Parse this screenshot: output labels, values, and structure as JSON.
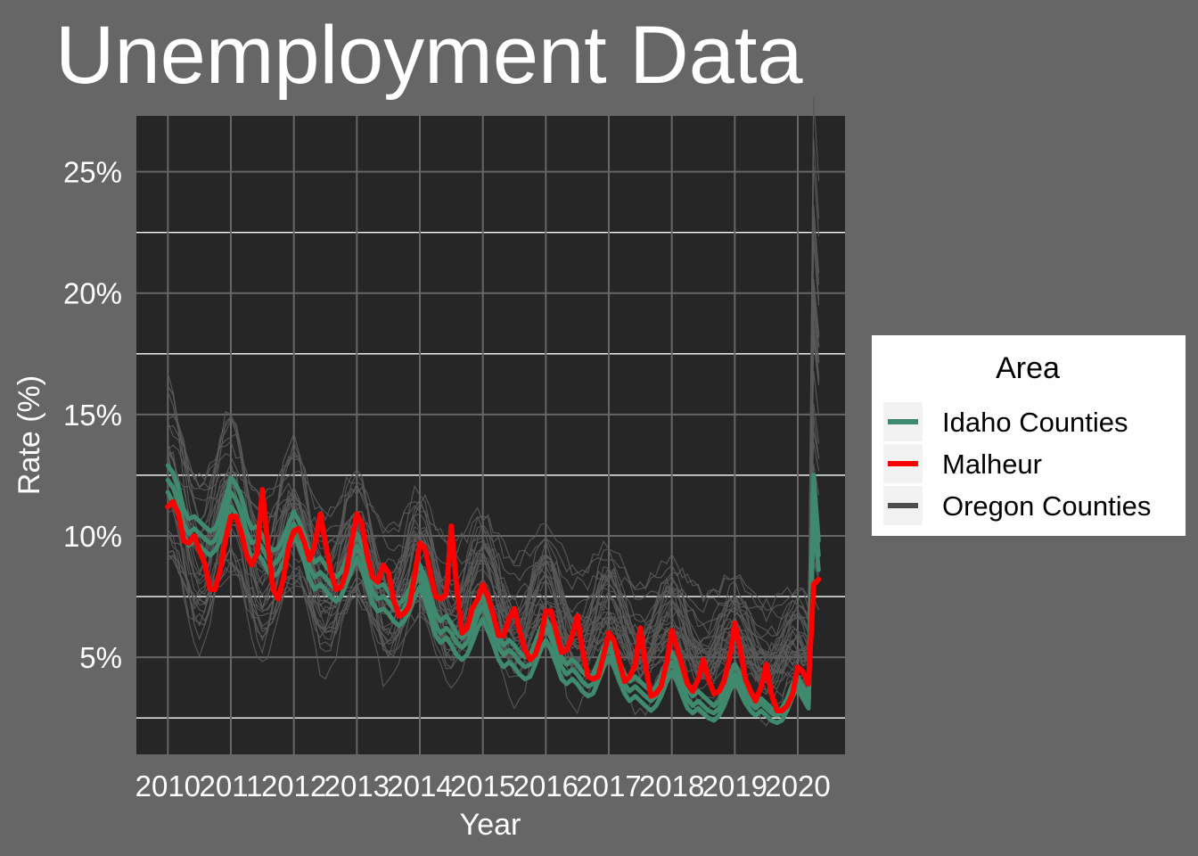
{
  "chart_data": {
    "type": "line",
    "title": "Unemployment Data",
    "xlabel": "Year",
    "ylabel": "Rate (%)",
    "xlim": [
      2009.5,
      2020.75
    ],
    "ylim": [
      1.0,
      27.3
    ],
    "x_ticks": [
      2010,
      2011,
      2012,
      2013,
      2014,
      2015,
      2016,
      2017,
      2018,
      2019,
      2020
    ],
    "x_tick_labels": [
      "2010",
      "2011",
      "2012",
      "2013",
      "2014",
      "2015",
      "2016",
      "2017",
      "2018",
      "2019",
      "2020"
    ],
    "y_ticks": [
      5,
      10,
      15,
      20,
      25
    ],
    "y_tick_labels": [
      "5%",
      "10%",
      "15%",
      "20%",
      "25%"
    ],
    "y_minor": [
      2.5,
      7.5,
      12.5,
      17.5,
      22.5
    ],
    "grid": true,
    "legend": {
      "title": "Area",
      "placement": "right",
      "entries": [
        {
          "label": "Idaho Counties",
          "color": "#3f8a6e"
        },
        {
          "label": "Malheur",
          "color": "#ff0000"
        },
        {
          "label": "Oregon Counties",
          "color": "#4d4d4d"
        }
      ]
    },
    "colors": {
      "page_background": "#666666",
      "panel_background": "#262626",
      "grid_major": "#666666",
      "grid_minor": "#ffffff",
      "idaho": "#3f8a6e",
      "malheur": "#ff0000",
      "oregon": "#5a5a5a"
    },
    "series": [
      {
        "name": "Malheur",
        "group": "Malheur",
        "x": [
          2010.0,
          2010.08,
          2010.17,
          2010.25,
          2010.33,
          2010.42,
          2010.5,
          2010.58,
          2010.67,
          2010.75,
          2010.83,
          2010.92,
          2011.0,
          2011.08,
          2011.17,
          2011.25,
          2011.33,
          2011.42,
          2011.5,
          2011.58,
          2011.67,
          2011.75,
          2011.83,
          2011.92,
          2012.0,
          2012.08,
          2012.17,
          2012.25,
          2012.33,
          2012.42,
          2012.5,
          2012.58,
          2012.67,
          2012.75,
          2012.83,
          2012.92,
          2013.0,
          2013.08,
          2013.17,
          2013.25,
          2013.33,
          2013.42,
          2013.5,
          2013.58,
          2013.67,
          2013.75,
          2013.83,
          2013.92,
          2014.0,
          2014.08,
          2014.17,
          2014.25,
          2014.33,
          2014.42,
          2014.5,
          2014.58,
          2014.67,
          2014.75,
          2014.83,
          2014.92,
          2015.0,
          2015.08,
          2015.17,
          2015.25,
          2015.33,
          2015.42,
          2015.5,
          2015.58,
          2015.67,
          2015.75,
          2015.83,
          2015.92,
          2016.0,
          2016.08,
          2016.17,
          2016.25,
          2016.33,
          2016.42,
          2016.5,
          2016.58,
          2016.67,
          2016.75,
          2016.83,
          2016.92,
          2017.0,
          2017.08,
          2017.17,
          2017.25,
          2017.33,
          2017.42,
          2017.5,
          2017.58,
          2017.67,
          2017.75,
          2017.83,
          2017.92,
          2018.0,
          2018.08,
          2018.17,
          2018.25,
          2018.33,
          2018.42,
          2018.5,
          2018.58,
          2018.67,
          2018.75,
          2018.83,
          2018.92,
          2019.0,
          2019.08,
          2019.17,
          2019.25,
          2019.33,
          2019.42,
          2019.5,
          2019.58,
          2019.67,
          2019.75,
          2019.83,
          2019.92,
          2020.0,
          2020.08,
          2020.17,
          2020.25,
          2020.33
        ],
        "y": [
          11.2,
          11.4,
          10.9,
          9.8,
          9.7,
          10.0,
          9.4,
          8.9,
          7.8,
          7.8,
          8.6,
          9.9,
          10.8,
          10.8,
          10.1,
          9.2,
          8.8,
          9.3,
          11.9,
          9.8,
          7.8,
          7.4,
          8.2,
          9.6,
          10.2,
          10.3,
          9.7,
          9.0,
          9.6,
          10.9,
          9.7,
          8.6,
          7.8,
          7.9,
          8.5,
          9.8,
          10.9,
          10.5,
          9.1,
          8.3,
          8.1,
          8.8,
          8.5,
          7.4,
          6.7,
          6.8,
          7.1,
          8.4,
          9.7,
          9.5,
          8.4,
          7.5,
          7.4,
          7.6,
          10.4,
          8.0,
          6.0,
          6.2,
          7.0,
          7.4,
          8.0,
          7.5,
          6.7,
          5.9,
          5.9,
          6.6,
          7.0,
          6.1,
          5.3,
          4.9,
          5.1,
          5.8,
          6.9,
          6.9,
          6.0,
          5.2,
          5.3,
          5.9,
          6.7,
          5.3,
          4.2,
          4.1,
          4.2,
          5.1,
          6.0,
          5.7,
          4.8,
          4.0,
          4.2,
          4.7,
          6.2,
          4.7,
          3.4,
          3.5,
          3.8,
          4.8,
          6.1,
          5.4,
          4.6,
          3.9,
          3.6,
          4.1,
          4.9,
          4.1,
          3.5,
          3.6,
          4.0,
          5.0,
          6.4,
          5.4,
          4.1,
          3.6,
          3.2,
          3.8,
          4.7,
          3.5,
          2.8,
          2.8,
          3.0,
          3.5,
          4.6,
          4.4,
          3.9,
          8.0,
          8.2
        ]
      },
      {
        "name": "Idaho Counties",
        "group": "Idaho Counties",
        "x": [
          2010.0,
          2010.08,
          2010.17,
          2010.25,
          2010.33,
          2010.42,
          2010.5,
          2010.58,
          2010.67,
          2010.75,
          2010.83,
          2010.92,
          2011.0,
          2011.08,
          2011.17,
          2011.25,
          2011.33,
          2011.42,
          2011.5,
          2011.58,
          2011.67,
          2011.75,
          2011.83,
          2011.92,
          2012.0,
          2012.08,
          2012.17,
          2012.25,
          2012.33,
          2012.42,
          2012.5,
          2012.58,
          2012.67,
          2012.75,
          2012.83,
          2012.92,
          2013.0,
          2013.08,
          2013.17,
          2013.25,
          2013.33,
          2013.42,
          2013.5,
          2013.58,
          2013.67,
          2013.75,
          2013.83,
          2013.92,
          2014.0,
          2014.08,
          2014.17,
          2014.25,
          2014.33,
          2014.42,
          2014.5,
          2014.58,
          2014.67,
          2014.75,
          2014.83,
          2014.92,
          2015.0,
          2015.08,
          2015.17,
          2015.25,
          2015.33,
          2015.42,
          2015.5,
          2015.58,
          2015.67,
          2015.75,
          2015.83,
          2015.92,
          2016.0,
          2016.08,
          2016.17,
          2016.25,
          2016.33,
          2016.42,
          2016.5,
          2016.58,
          2016.67,
          2016.75,
          2016.83,
          2016.92,
          2017.0,
          2017.08,
          2017.17,
          2017.25,
          2017.33,
          2017.42,
          2017.5,
          2017.58,
          2017.67,
          2017.75,
          2017.83,
          2017.92,
          2018.0,
          2018.08,
          2018.17,
          2018.25,
          2018.33,
          2018.42,
          2018.5,
          2018.58,
          2018.67,
          2018.75,
          2018.83,
          2018.92,
          2019.0,
          2019.08,
          2019.17,
          2019.25,
          2019.33,
          2019.42,
          2019.5,
          2019.58,
          2019.67,
          2019.75,
          2019.83,
          2019.92,
          2020.0,
          2020.08,
          2020.17,
          2020.25,
          2020.33
        ],
        "y": [
          12.9,
          12.6,
          12.0,
          11.1,
          10.7,
          10.8,
          10.6,
          10.4,
          10.2,
          10.3,
          10.8,
          11.6,
          12.4,
          12.1,
          11.6,
          10.8,
          10.3,
          10.4,
          10.0,
          9.6,
          9.4,
          9.5,
          9.9,
          10.5,
          11.0,
          10.6,
          10.0,
          9.3,
          8.9,
          9.1,
          8.8,
          8.5,
          8.3,
          8.5,
          9.0,
          9.6,
          10.1,
          9.6,
          8.9,
          8.2,
          7.9,
          8.0,
          7.7,
          7.4,
          7.2,
          7.4,
          7.8,
          8.4,
          8.8,
          8.3,
          7.5,
          6.8,
          6.5,
          6.7,
          6.4,
          6.0,
          5.8,
          6.0,
          6.5,
          7.1,
          7.5,
          7.0,
          6.4,
          5.8,
          5.5,
          5.7,
          5.5,
          5.2,
          5.0,
          5.1,
          5.6,
          6.2,
          6.6,
          6.2,
          5.6,
          5.0,
          4.7,
          4.9,
          4.7,
          4.4,
          4.2,
          4.3,
          4.8,
          5.4,
          5.8,
          5.4,
          4.8,
          4.3,
          4.0,
          4.2,
          4.0,
          3.8,
          3.6,
          3.8,
          4.2,
          4.8,
          5.2,
          4.8,
          4.2,
          3.7,
          3.4,
          3.6,
          3.4,
          3.2,
          3.0,
          3.2,
          3.7,
          4.3,
          4.7,
          4.3,
          3.8,
          3.4,
          3.1,
          3.3,
          3.1,
          2.9,
          2.8,
          2.9,
          3.3,
          3.9,
          4.2,
          3.8,
          3.2,
          12.5,
          9.8
        ]
      },
      {
        "name": "Idaho Counties",
        "group": "Idaho Counties",
        "x": [
          2010.0,
          2010.08,
          2010.17,
          2010.25,
          2010.33,
          2010.42,
          2010.5,
          2010.58,
          2010.67,
          2010.75,
          2010.83,
          2010.92,
          2011.0,
          2011.08,
          2011.17,
          2011.25,
          2011.33,
          2011.42,
          2011.5,
          2011.58,
          2011.67,
          2011.75,
          2011.83,
          2011.92,
          2012.0,
          2012.08,
          2012.17,
          2012.25,
          2012.33,
          2012.42,
          2012.5,
          2012.58,
          2012.67,
          2012.75,
          2012.83,
          2012.92,
          2013.0,
          2013.08,
          2013.17,
          2013.25,
          2013.33,
          2013.42,
          2013.5,
          2013.58,
          2013.67,
          2013.75,
          2013.83,
          2013.92,
          2014.0,
          2014.08,
          2014.17,
          2014.25,
          2014.33,
          2014.42,
          2014.5,
          2014.58,
          2014.67,
          2014.75,
          2014.83,
          2014.92,
          2015.0,
          2015.08,
          2015.17,
          2015.25,
          2015.33,
          2015.42,
          2015.5,
          2015.58,
          2015.67,
          2015.75,
          2015.83,
          2015.92,
          2016.0,
          2016.08,
          2016.17,
          2016.25,
          2016.33,
          2016.42,
          2016.5,
          2016.58,
          2016.67,
          2016.75,
          2016.83,
          2016.92,
          2017.0,
          2017.08,
          2017.17,
          2017.25,
          2017.33,
          2017.42,
          2017.5,
          2017.58,
          2017.67,
          2017.75,
          2017.83,
          2017.92,
          2018.0,
          2018.08,
          2018.17,
          2018.25,
          2018.33,
          2018.42,
          2018.5,
          2018.58,
          2018.67,
          2018.75,
          2018.83,
          2018.92,
          2019.0,
          2019.08,
          2019.17,
          2019.25,
          2019.33,
          2019.42,
          2019.5,
          2019.58,
          2019.67,
          2019.75,
          2019.83,
          2019.92,
          2020.0,
          2020.08,
          2020.17,
          2020.25,
          2020.33
        ],
        "y": [
          11.8,
          11.4,
          10.8,
          10.0,
          9.6,
          9.8,
          9.6,
          9.4,
          9.2,
          9.4,
          9.8,
          10.6,
          11.2,
          10.9,
          10.3,
          9.6,
          9.1,
          9.3,
          9.0,
          8.6,
          8.3,
          8.5,
          8.9,
          9.5,
          10.0,
          9.6,
          8.9,
          8.2,
          7.8,
          8.0,
          7.8,
          7.5,
          7.3,
          7.5,
          8.0,
          8.6,
          9.1,
          8.6,
          7.9,
          7.2,
          6.9,
          7.0,
          6.8,
          6.5,
          6.3,
          6.5,
          6.9,
          7.5,
          7.9,
          7.4,
          6.6,
          5.9,
          5.6,
          5.8,
          5.5,
          5.1,
          4.9,
          5.1,
          5.6,
          6.2,
          6.6,
          6.1,
          5.5,
          4.9,
          4.6,
          4.8,
          4.6,
          4.3,
          4.1,
          4.2,
          4.7,
          5.3,
          5.7,
          5.3,
          4.7,
          4.1,
          3.9,
          4.1,
          3.9,
          3.6,
          3.4,
          3.5,
          4.0,
          4.6,
          5.0,
          4.6,
          4.0,
          3.5,
          3.2,
          3.4,
          3.2,
          3.0,
          2.8,
          3.0,
          3.4,
          4.0,
          4.4,
          4.0,
          3.4,
          2.9,
          2.7,
          2.9,
          2.7,
          2.5,
          2.4,
          2.6,
          3.0,
          3.6,
          4.0,
          3.6,
          3.1,
          2.8,
          2.6,
          2.8,
          2.6,
          2.4,
          2.3,
          2.4,
          2.8,
          3.4,
          3.7,
          3.3,
          2.9,
          10.8,
          8.6
        ]
      },
      {
        "name": "Idaho Counties",
        "group": "Idaho Counties",
        "x": [
          2010.0,
          2010.08,
          2010.17,
          2010.25,
          2010.33,
          2010.42,
          2010.5,
          2010.58,
          2010.67,
          2010.75,
          2010.83,
          2010.92,
          2011.0,
          2011.08,
          2011.17,
          2011.25,
          2011.33,
          2011.42,
          2011.5,
          2011.58,
          2011.67,
          2011.75,
          2011.83,
          2011.92,
          2012.0,
          2012.08,
          2012.17,
          2012.25,
          2012.33,
          2012.42,
          2012.5,
          2012.58,
          2012.67,
          2012.75,
          2012.83,
          2012.92,
          2013.0,
          2013.08,
          2013.17,
          2013.25,
          2013.33,
          2013.42,
          2013.5,
          2013.58,
          2013.67,
          2013.75,
          2013.83,
          2013.92,
          2014.0,
          2014.08,
          2014.17,
          2014.25,
          2014.33,
          2014.42,
          2014.5,
          2014.58,
          2014.67,
          2014.75,
          2014.83,
          2014.92,
          2015.0,
          2015.08,
          2015.17,
          2015.25,
          2015.33,
          2015.42,
          2015.5,
          2015.58,
          2015.67,
          2015.75,
          2015.83,
          2015.92,
          2016.0,
          2016.08,
          2016.17,
          2016.25,
          2016.33,
          2016.42,
          2016.5,
          2016.58,
          2016.67,
          2016.75,
          2016.83,
          2016.92,
          2017.0,
          2017.08,
          2017.17,
          2017.25,
          2017.33,
          2017.42,
          2017.5,
          2017.58,
          2017.67,
          2017.75,
          2017.83,
          2017.92,
          2018.0,
          2018.08,
          2018.17,
          2018.25,
          2018.33,
          2018.42,
          2018.5,
          2018.58,
          2018.67,
          2018.75,
          2018.83,
          2018.92,
          2019.0,
          2019.08,
          2019.17,
          2019.25,
          2019.33,
          2019.42,
          2019.5,
          2019.58,
          2019.67,
          2019.75,
          2019.83,
          2019.92,
          2020.0,
          2020.08,
          2020.17,
          2020.25,
          2020.33
        ],
        "y": [
          12.3,
          12.0,
          11.4,
          10.5,
          10.1,
          10.3,
          10.1,
          9.9,
          9.7,
          9.8,
          10.3,
          11.1,
          11.8,
          11.5,
          10.9,
          10.2,
          9.7,
          9.8,
          9.5,
          9.1,
          8.8,
          9.0,
          9.4,
          10.0,
          10.5,
          10.1,
          9.4,
          8.7,
          8.3,
          8.5,
          8.3,
          8.0,
          7.8,
          8.0,
          8.5,
          9.1,
          9.6,
          9.1,
          8.4,
          7.7,
          7.4,
          7.5,
          7.3,
          7.0,
          6.8,
          7.0,
          7.4,
          8.0,
          8.4,
          7.8,
          7.0,
          6.3,
          6.0,
          6.2,
          6.0,
          5.6,
          5.4,
          5.6,
          6.1,
          6.7,
          7.1,
          6.6,
          6.0,
          5.4,
          5.1,
          5.3,
          5.1,
          4.8,
          4.6,
          4.7,
          5.2,
          5.8,
          6.2,
          5.8,
          5.2,
          4.6,
          4.3,
          4.5,
          4.3,
          4.0,
          3.8,
          3.9,
          4.4,
          5.0,
          5.4,
          5.0,
          4.4,
          3.9,
          3.6,
          3.8,
          3.6,
          3.4,
          3.2,
          3.4,
          3.8,
          4.4,
          4.8,
          4.4,
          3.8,
          3.3,
          3.0,
          3.2,
          3.0,
          2.8,
          2.7,
          2.9,
          3.3,
          3.9,
          4.3,
          3.9,
          3.4,
          3.1,
          2.9,
          3.1,
          2.9,
          2.7,
          2.6,
          2.7,
          3.1,
          3.7,
          4.0,
          3.6,
          3.0,
          11.6,
          9.2
        ]
      }
    ]
  }
}
